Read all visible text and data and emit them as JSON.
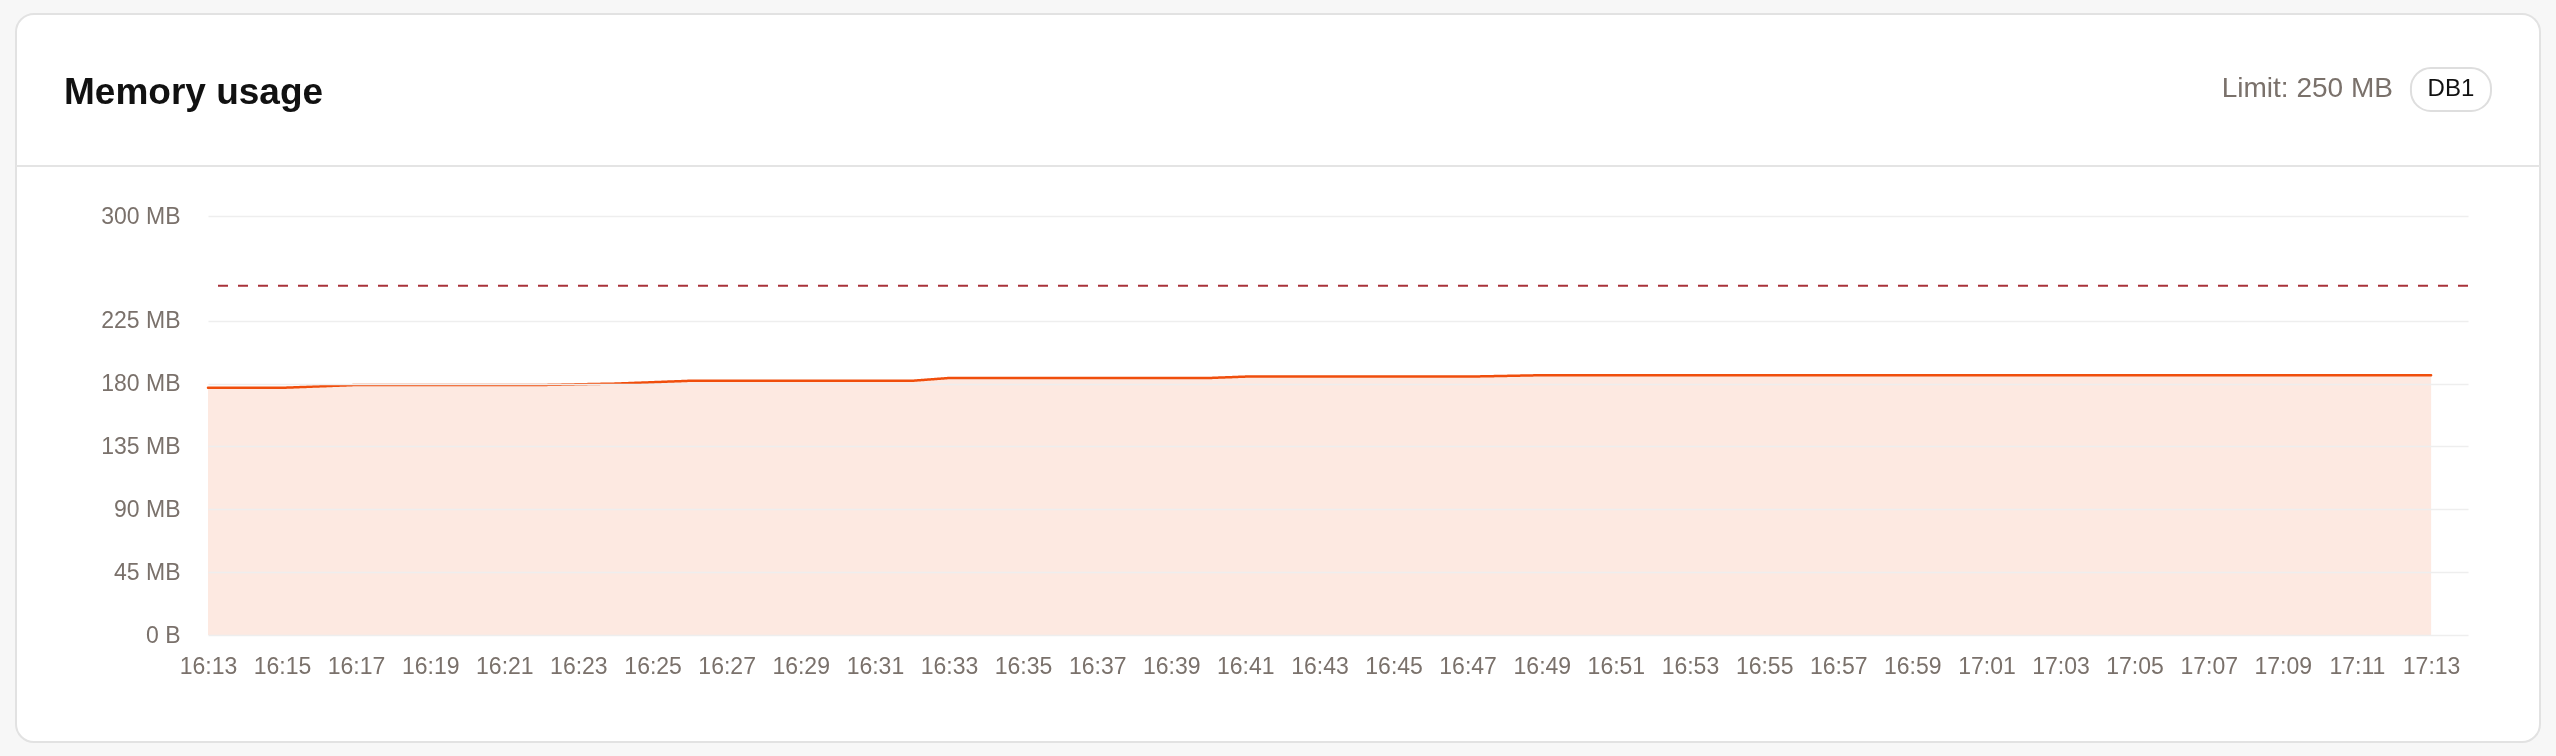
{
  "chart_data": {
    "type": "area",
    "title": "Memory usage",
    "annotations": [
      "Limit: 250 MB",
      "DB1"
    ],
    "x": [
      16.2167,
      16.25,
      16.2833,
      16.3667,
      16.4,
      16.4333,
      16.5333,
      16.55,
      16.6667,
      16.6833,
      16.7833,
      16.8167,
      17.2167
    ],
    "series": [
      {
        "color": "#f04e0c",
        "values": [
          177,
          177,
          179,
          179,
          180,
          182,
          182,
          184,
          184,
          185,
          185,
          186,
          186
        ]
      }
    ],
    "xlim": [
      16.2167,
      17.2333
    ],
    "xticks": [
      {
        "value": 16.2167,
        "label": "16:13"
      },
      {
        "value": 16.25,
        "label": "16:15"
      },
      {
        "value": 16.2833,
        "label": "16:17"
      },
      {
        "value": 16.3167,
        "label": "16:19"
      },
      {
        "value": 16.35,
        "label": "16:21"
      },
      {
        "value": 16.3833,
        "label": "16:23"
      },
      {
        "value": 16.4167,
        "label": "16:25"
      },
      {
        "value": 16.45,
        "label": "16:27"
      },
      {
        "value": 16.4833,
        "label": "16:29"
      },
      {
        "value": 16.5167,
        "label": "16:31"
      },
      {
        "value": 16.55,
        "label": "16:33"
      },
      {
        "value": 16.5833,
        "label": "16:35"
      },
      {
        "value": 16.6167,
        "label": "16:37"
      },
      {
        "value": 16.65,
        "label": "16:39"
      },
      {
        "value": 16.6833,
        "label": "16:41"
      },
      {
        "value": 16.7167,
        "label": "16:43"
      },
      {
        "value": 16.75,
        "label": "16:45"
      },
      {
        "value": 16.7833,
        "label": "16:47"
      },
      {
        "value": 16.8167,
        "label": "16:49"
      },
      {
        "value": 16.85,
        "label": "16:51"
      },
      {
        "value": 16.8833,
        "label": "16:53"
      },
      {
        "value": 16.9167,
        "label": "16:55"
      },
      {
        "value": 16.95,
        "label": "16:57"
      },
      {
        "value": 16.9833,
        "label": "16:59"
      },
      {
        "value": 17.0167,
        "label": "17:01"
      },
      {
        "value": 17.05,
        "label": "17:03"
      },
      {
        "value": 17.0833,
        "label": "17:05"
      },
      {
        "value": 17.1167,
        "label": "17:07"
      },
      {
        "value": 17.15,
        "label": "17:09"
      },
      {
        "value": 17.1833,
        "label": "17:11"
      },
      {
        "value": 17.2167,
        "label": "17:13"
      }
    ],
    "ylim": [
      0,
      300
    ],
    "yticks": [
      {
        "value": 0,
        "label": "0 B"
      },
      {
        "value": 45,
        "label": "45 MB"
      },
      {
        "value": 90,
        "label": "90 MB"
      },
      {
        "value": 135,
        "label": "135 MB"
      },
      {
        "value": 180,
        "label": "180 MB"
      },
      {
        "value": 225,
        "label": "225 MB"
      },
      {
        "value": 300,
        "label": "300 MB"
      }
    ],
    "ref_lines": [
      {
        "axis": "y",
        "value": 250,
        "color": "#a8323a",
        "line_style": "dashed"
      }
    ],
    "grid": "y"
  }
}
